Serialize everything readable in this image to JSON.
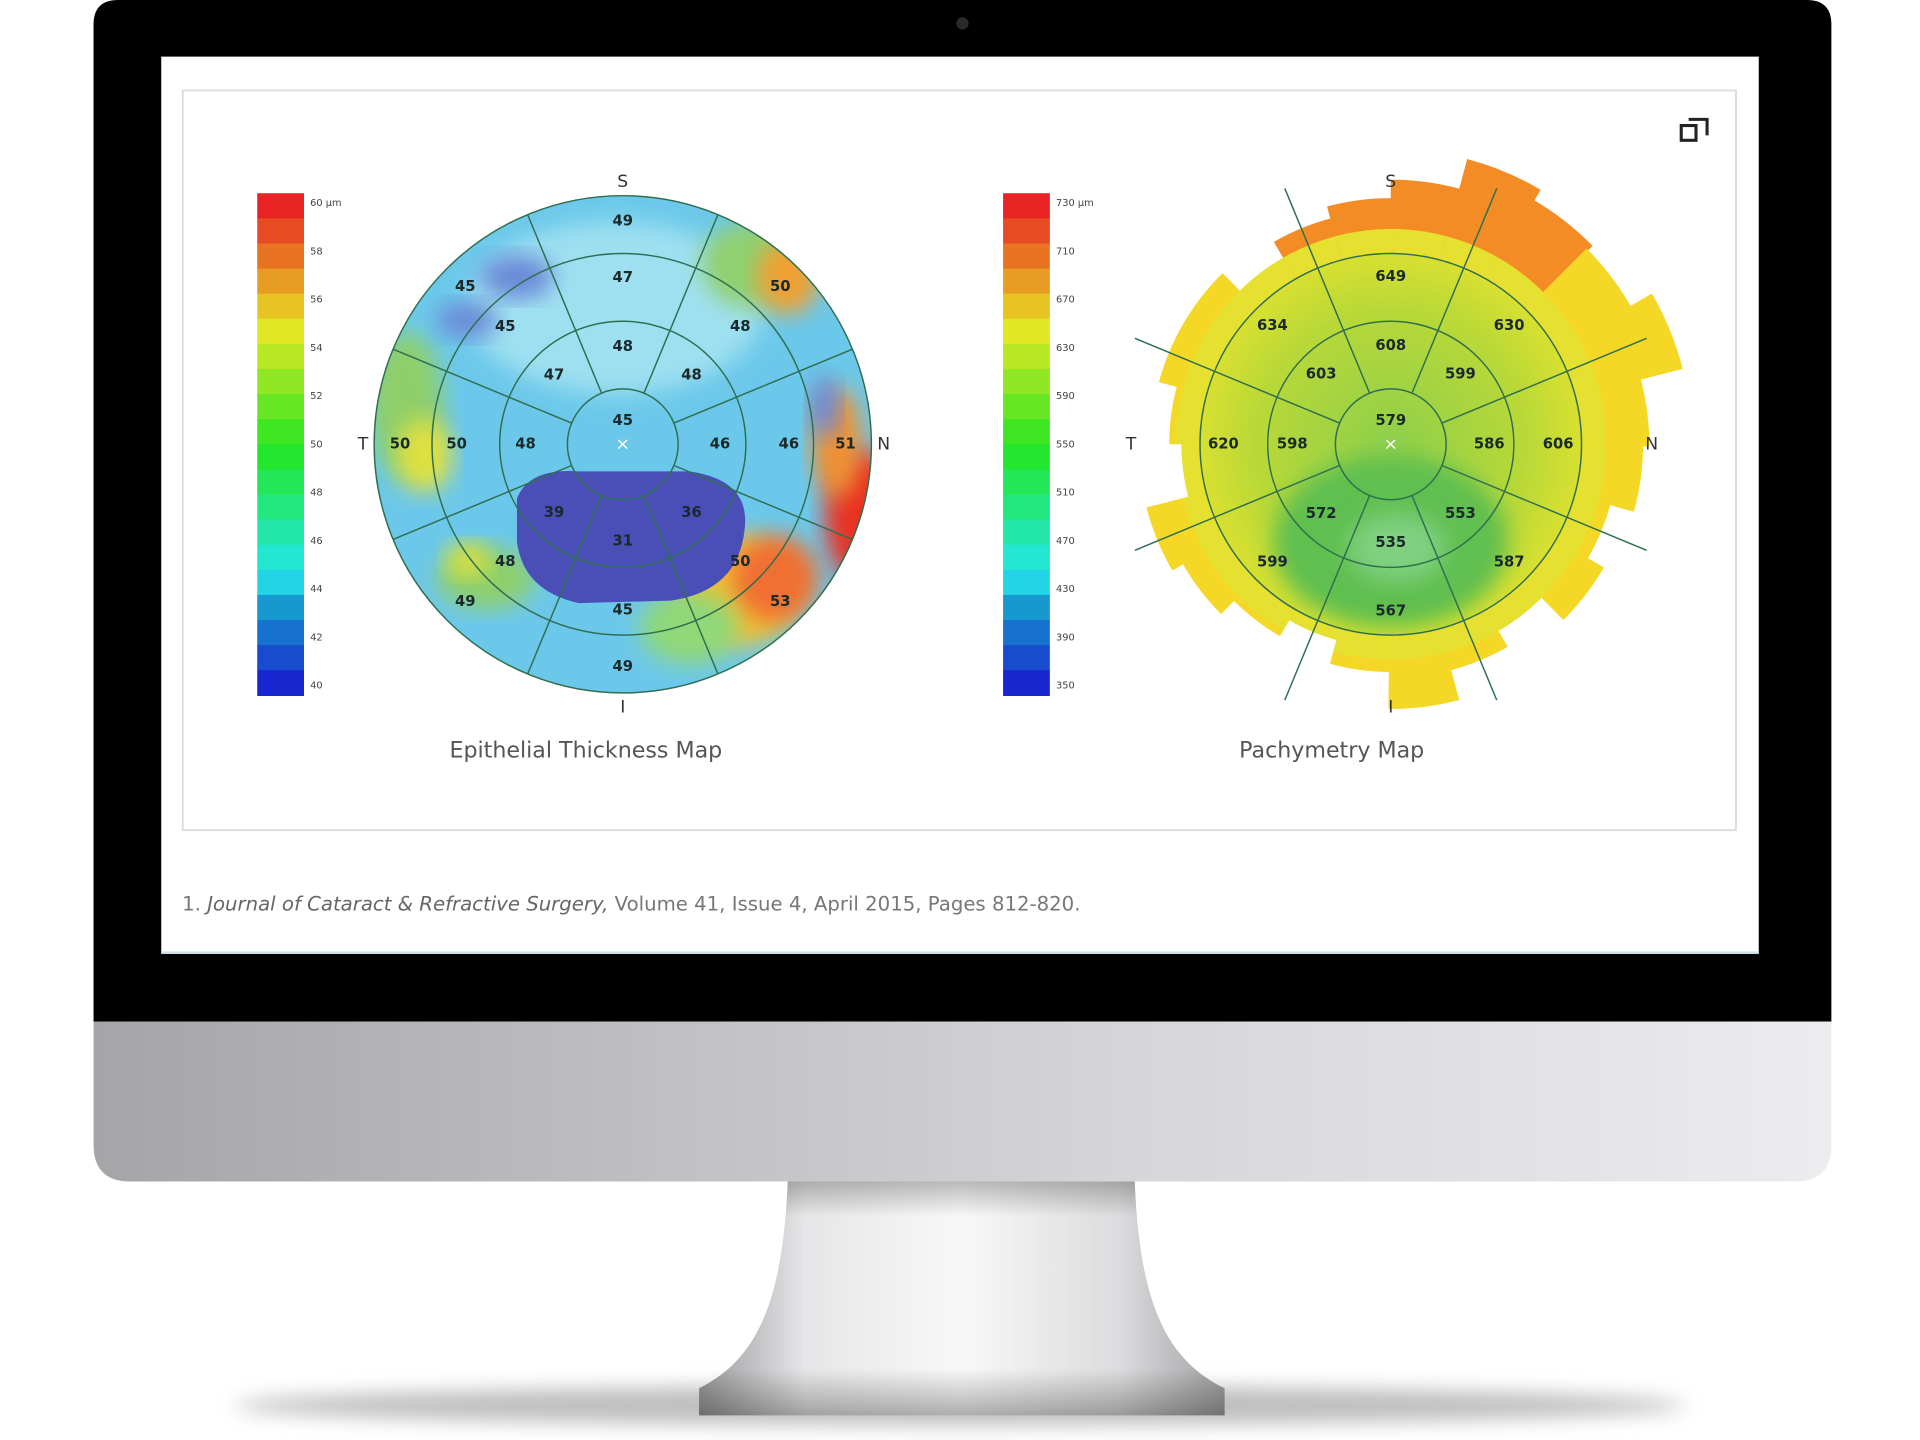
{
  "maps": [
    {
      "caption": "Epithelial Thickness Map",
      "orientation": {
        "top": "S",
        "left": "T",
        "right": "N",
        "bottom": "I"
      },
      "scale_labels": [
        "60 µm",
        "58",
        "56",
        "54",
        "52",
        "50",
        "48",
        "46",
        "44",
        "42",
        "40"
      ],
      "center": 45,
      "rings": [
        [
          48,
          48,
          46,
          36,
          31,
          39,
          48,
          47
        ],
        [
          47,
          48,
          46,
          50,
          45,
          48,
          50,
          45
        ],
        [
          49,
          50,
          51,
          53,
          49,
          49,
          50,
          45
        ]
      ]
    },
    {
      "caption": "Pachymetry Map",
      "orientation": {
        "top": "S",
        "left": "T",
        "right": "N",
        "bottom": "I"
      },
      "scale_labels": [
        "730 µm",
        "710",
        "670",
        "630",
        "590",
        "550",
        "510",
        "470",
        "430",
        "390",
        "350"
      ],
      "center": 579,
      "rings": [
        [
          608,
          599,
          586,
          553,
          535,
          572,
          598,
          603
        ],
        [
          649,
          630,
          606,
          587,
          567,
          599,
          620,
          634
        ]
      ]
    }
  ],
  "citation": {
    "number": "1.",
    "journal": "Journal of Cataract & Refractive Surgery,",
    "details": "Volume 41, Issue 4, April 2015, Pages 812-820."
  }
}
